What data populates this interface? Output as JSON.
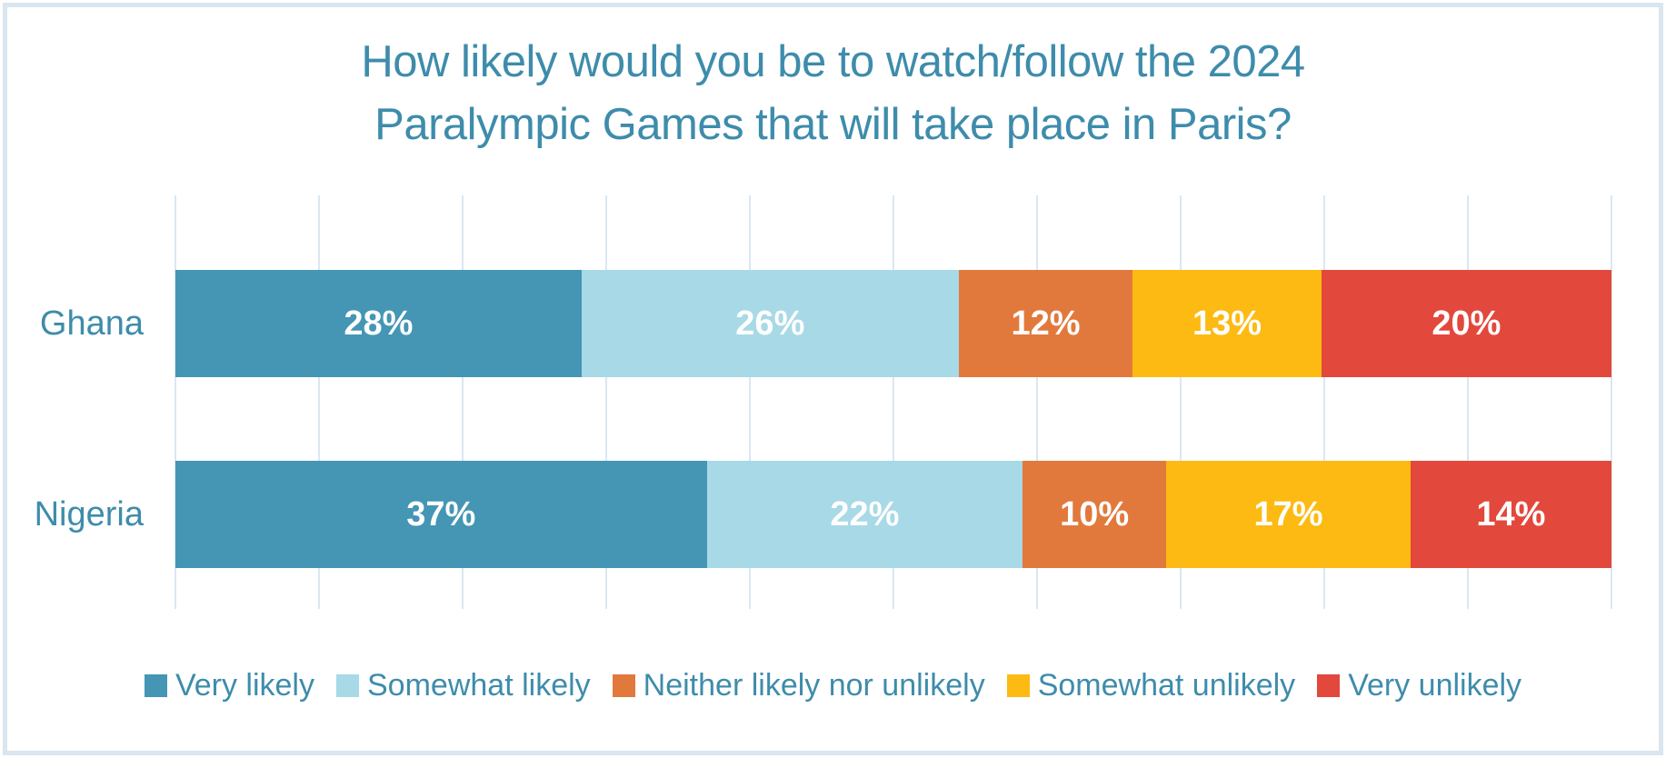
{
  "page": {
    "background": "#ffffff",
    "border_color": "#d9e6ef",
    "text_color": "#3e8cab"
  },
  "chart_data": {
    "type": "bar",
    "subtype": "stacked-horizontal-100pct",
    "title": "How likely would you be to watch/follow the 2024 Paralympic Games that will take place in Paris?",
    "title_lines": [
      "How likely would you be to watch/follow the 2024",
      "Paralympic Games that will take place in Paris?"
    ],
    "categories": [
      "Ghana",
      "Nigeria"
    ],
    "series": [
      {
        "name": "Very likely",
        "color": "#4496b4",
        "values": [
          28,
          37
        ]
      },
      {
        "name": "Somewhat likely",
        "color": "#a8d9e6",
        "values": [
          26,
          22
        ]
      },
      {
        "name": "Neither likely nor unlikely",
        "color": "#e2793c",
        "values": [
          12,
          10
        ]
      },
      {
        "name": "Somewhat unlikely",
        "color": "#fdba12",
        "values": [
          13,
          17
        ]
      },
      {
        "name": "Very unlikely",
        "color": "#e3483c",
        "values": [
          20,
          14
        ]
      }
    ],
    "value_suffix": "%",
    "xlim": [
      0,
      100
    ],
    "gridlines": {
      "show": true,
      "step": 10,
      "color": "#d9e8f3"
    },
    "legend_position": "bottom",
    "data_label_color": "#ffffff"
  }
}
